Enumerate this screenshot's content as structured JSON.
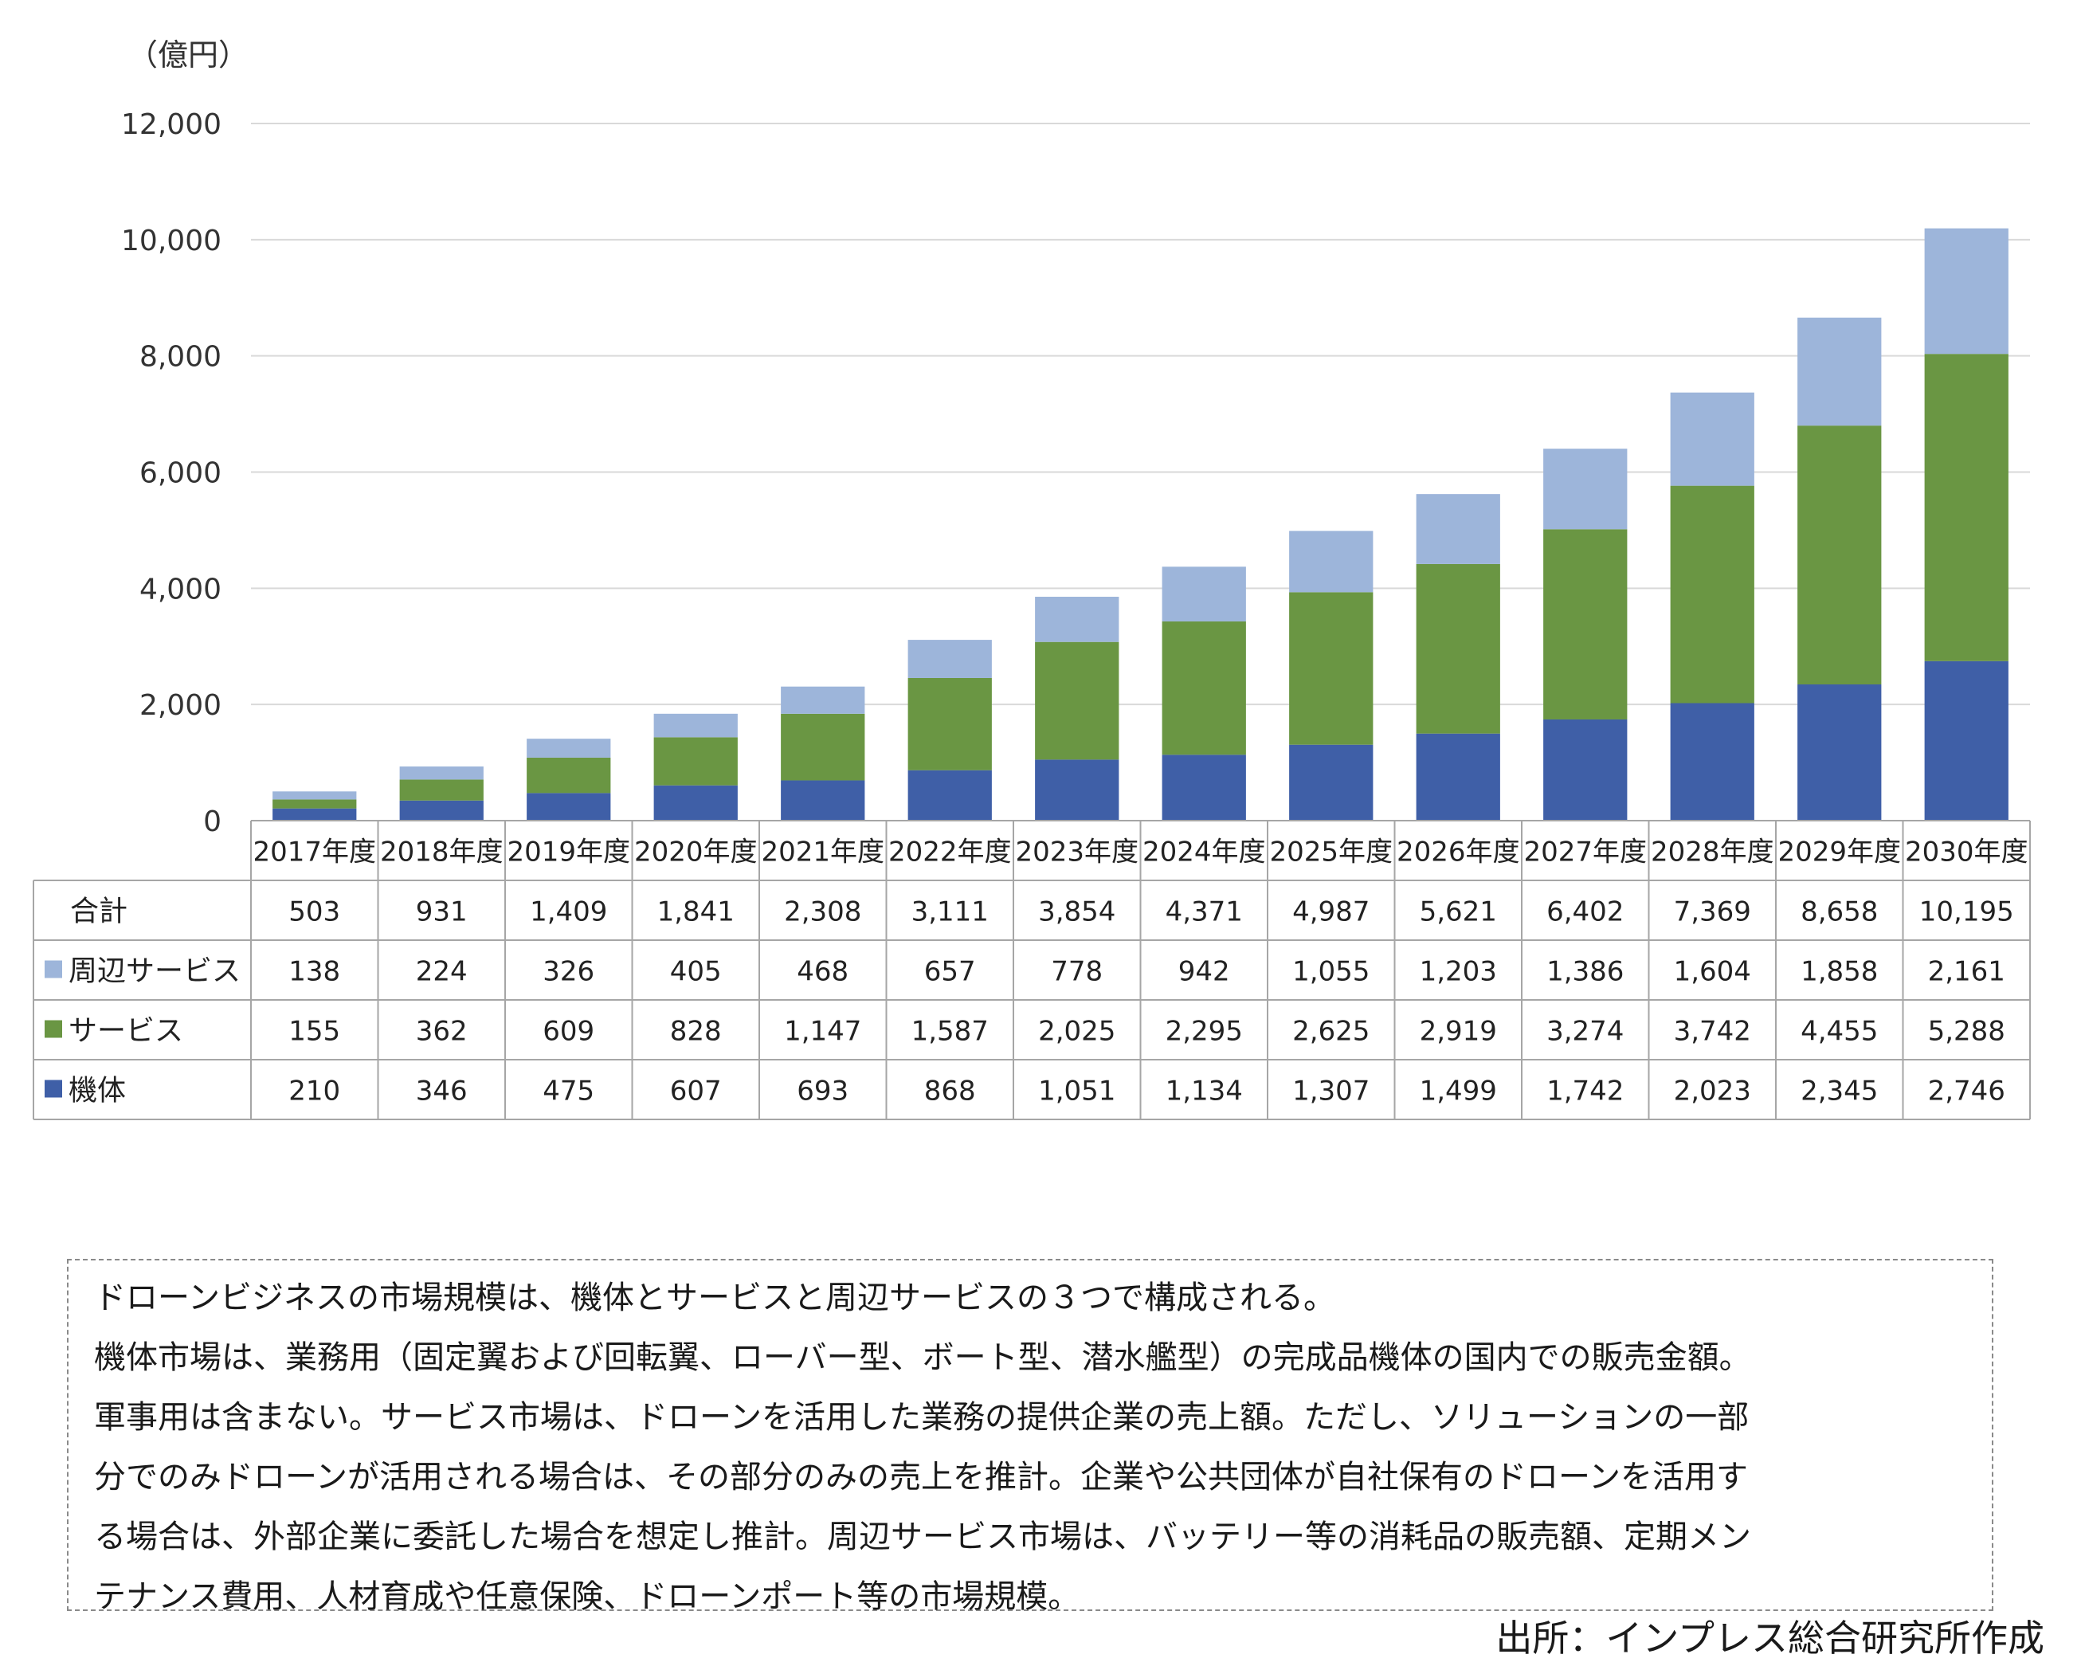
{
  "chart_data": {
    "type": "bar",
    "stacked": true,
    "unit_label": "（億円）",
    "categories": [
      "2017年度",
      "2018年度",
      "2019年度",
      "2020年度",
      "2021年度",
      "2022年度",
      "2023年度",
      "2024年度",
      "2025年度",
      "2026年度",
      "2027年度",
      "2028年度",
      "2029年度",
      "2030年度"
    ],
    "series": [
      {
        "name": "機体",
        "color": "#3f5fa7",
        "values": [
          210,
          346,
          475,
          607,
          693,
          868,
          1051,
          1134,
          1307,
          1499,
          1742,
          2023,
          2345,
          2746
        ]
      },
      {
        "name": "サービス",
        "color": "#6a9643",
        "values": [
          155,
          362,
          609,
          828,
          1147,
          1587,
          2025,
          2295,
          2625,
          2919,
          3274,
          3742,
          4455,
          5288
        ]
      },
      {
        "name": "周辺サービス",
        "color": "#9db5da",
        "values": [
          138,
          224,
          326,
          405,
          468,
          657,
          778,
          942,
          1055,
          1203,
          1386,
          1604,
          1858,
          2161
        ]
      }
    ],
    "ylim": [
      0,
      12000
    ],
    "y_ticks": [
      "0",
      "2,000",
      "4,000",
      "6,000",
      "8,000",
      "10,000",
      "12,000"
    ],
    "grid": true,
    "table": {
      "rows": [
        {
          "label": "合計",
          "marker": null,
          "values": [
            "503",
            "931",
            "1,409",
            "1,841",
            "2,308",
            "3,111",
            "3,854",
            "4,371",
            "4,987",
            "5,621",
            "6,402",
            "7,369",
            "8,658",
            "10,195"
          ]
        },
        {
          "label": "周辺サービス",
          "marker": "#9db5da",
          "values": [
            "138",
            "224",
            "326",
            "405",
            "468",
            "657",
            "778",
            "942",
            "1,055",
            "1,203",
            "1,386",
            "1,604",
            "1,858",
            "2,161"
          ]
        },
        {
          "label": "サービス",
          "marker": "#6a9643",
          "values": [
            "155",
            "362",
            "609",
            "828",
            "1,147",
            "1,587",
            "2,025",
            "2,295",
            "2,625",
            "2,919",
            "3,274",
            "3,742",
            "4,455",
            "5,288"
          ]
        },
        {
          "label": "機体",
          "marker": "#3f5fa7",
          "values": [
            "210",
            "346",
            "475",
            "607",
            "693",
            "868",
            "1,051",
            "1,134",
            "1,307",
            "1,499",
            "1,742",
            "2,023",
            "2,345",
            "2,746"
          ]
        }
      ]
    }
  },
  "note": {
    "lines": [
      "ドローンビジネスの市場規模は、機体とサービスと周辺サービスの３つで構成される。",
      "機体市場は、業務用（固定翼および回転翼、ローバー型、ボート型、潜水艦型）の完成品機体の国内での販売金額。",
      "軍事用は含まない。サービス市場は、ドローンを活用した業務の提供企業の売上額。ただし、ソリューションの一部",
      "分でのみドローンが活用される場合は、その部分のみの売上を推計。企業や公共団体が自社保有のドローンを活用す",
      "る場合は、外部企業に委託した場合を想定し推計。周辺サービス市場は、バッテリー等の消耗品の販売額、定期メン",
      "テナンス費用、人材育成や任意保険、ドローンポート等の市場規模。"
    ]
  },
  "source": "出所：インプレス総合研究所作成"
}
